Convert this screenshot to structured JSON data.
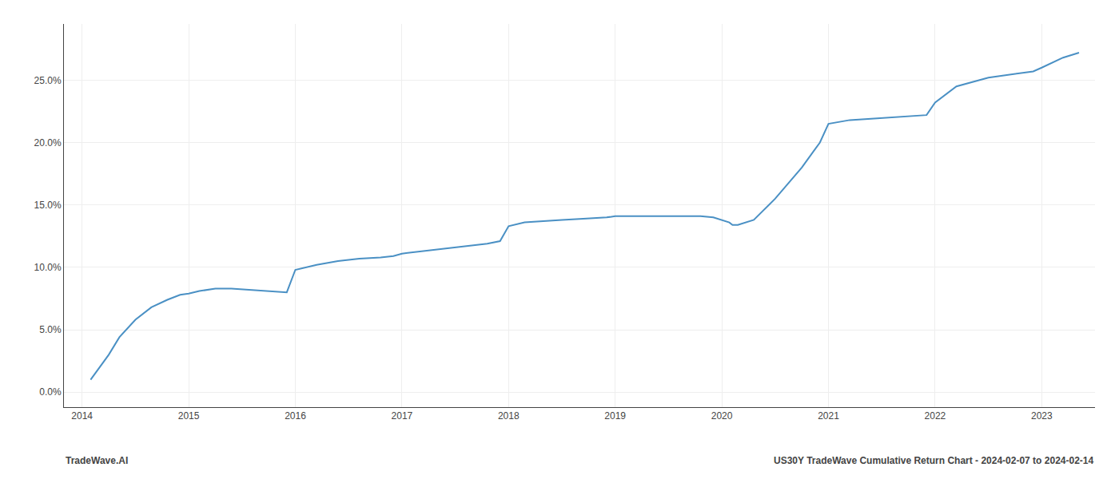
{
  "chart_data": {
    "type": "line",
    "x": [
      2014.08,
      2014.15,
      2014.25,
      2014.35,
      2014.5,
      2014.65,
      2014.8,
      2014.92,
      2015.0,
      2015.1,
      2015.25,
      2015.4,
      2015.6,
      2015.8,
      2015.92,
      2016.0,
      2016.2,
      2016.4,
      2016.6,
      2016.8,
      2016.92,
      2017.0,
      2017.2,
      2017.4,
      2017.6,
      2017.8,
      2017.92,
      2018.0,
      2018.15,
      2018.3,
      2018.5,
      2018.7,
      2018.92,
      2019.0,
      2019.2,
      2019.4,
      2019.6,
      2019.8,
      2019.92,
      2020.0,
      2020.07,
      2020.1,
      2020.15,
      2020.3,
      2020.5,
      2020.75,
      2020.92,
      2021.0,
      2021.2,
      2021.4,
      2021.6,
      2021.8,
      2021.92,
      2022.0,
      2022.2,
      2022.5,
      2022.75,
      2022.92,
      2023.0,
      2023.2,
      2023.35
    ],
    "values": [
      0.01,
      0.018,
      0.03,
      0.044,
      0.058,
      0.068,
      0.074,
      0.078,
      0.079,
      0.081,
      0.083,
      0.083,
      0.082,
      0.081,
      0.08,
      0.098,
      0.102,
      0.105,
      0.107,
      0.108,
      0.109,
      0.111,
      0.113,
      0.115,
      0.117,
      0.119,
      0.121,
      0.133,
      0.136,
      0.137,
      0.138,
      0.139,
      0.14,
      0.141,
      0.141,
      0.141,
      0.141,
      0.141,
      0.14,
      0.138,
      0.136,
      0.134,
      0.134,
      0.138,
      0.155,
      0.18,
      0.2,
      0.215,
      0.218,
      0.219,
      0.22,
      0.221,
      0.222,
      0.232,
      0.245,
      0.252,
      0.255,
      0.257,
      0.26,
      0.268,
      0.272
    ],
    "color": "#4a90c4",
    "xlim": [
      2013.83,
      2023.5
    ],
    "xticks": [
      2014,
      2015,
      2016,
      2017,
      2018,
      2019,
      2020,
      2021,
      2022,
      2023
    ],
    "ylim": [
      -0.012,
      0.295
    ],
    "yticks": [
      {
        "value": 0.0,
        "label": "0.0%"
      },
      {
        "value": 0.05,
        "label": "5.0%"
      },
      {
        "value": 0.1,
        "label": "10.0%"
      },
      {
        "value": 0.15,
        "label": "15.0%"
      },
      {
        "value": 0.2,
        "label": "20.0%"
      },
      {
        "value": 0.25,
        "label": "25.0%"
      }
    ],
    "grid": true,
    "annotations": [
      "TradeWave.AI",
      "US30Y TradeWave Cumulative Return Chart - 2024-02-07 to 2024-02-14"
    ]
  }
}
